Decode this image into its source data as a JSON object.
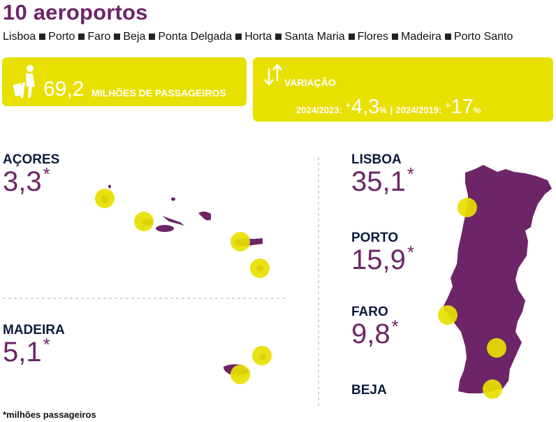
{
  "title": "10 aeroportos",
  "airports": [
    "Lisboa",
    "Porto",
    "Faro",
    "Beja",
    "Ponta Delgada",
    "Horta",
    "Santa Maria",
    "Flores",
    "Madeira",
    "Porto Santo"
  ],
  "passengers": {
    "icon": "traveler-luggage-icon",
    "value": "69,2",
    "label": "MILHÕES DE PASSAGEIROS"
  },
  "variation": {
    "icon": "up-down-arrows-icon",
    "label": "VARIAÇÃO",
    "period1_label": "2024/2023:",
    "period1_sign": "+",
    "period1_value": "4,3",
    "period1_unit": "%",
    "separator": "|",
    "period2_label": "2024/2019:",
    "period2_sign": "+",
    "period2_value": "17",
    "period2_unit": "%"
  },
  "regions": {
    "acores": {
      "name": "AÇORES",
      "value": "3,3",
      "asterisk": "*"
    },
    "madeira": {
      "name": "MADEIRA",
      "value": "5,1",
      "asterisk": "*"
    },
    "lisboa": {
      "name": "LISBOA",
      "value": "35,1",
      "asterisk": "*"
    },
    "porto": {
      "name": "PORTO",
      "value": "15,9",
      "asterisk": "*"
    },
    "faro": {
      "name": "FARO",
      "value": "9,8",
      "asterisk": "*"
    },
    "beja": {
      "name": "BEJA"
    }
  },
  "footnote": "*milhões passageiros",
  "colors": {
    "accent_yellow": "#e8e000",
    "brand_purple": "#6d2568",
    "navy": "#0d1b3e",
    "marker": "#e8e000"
  }
}
